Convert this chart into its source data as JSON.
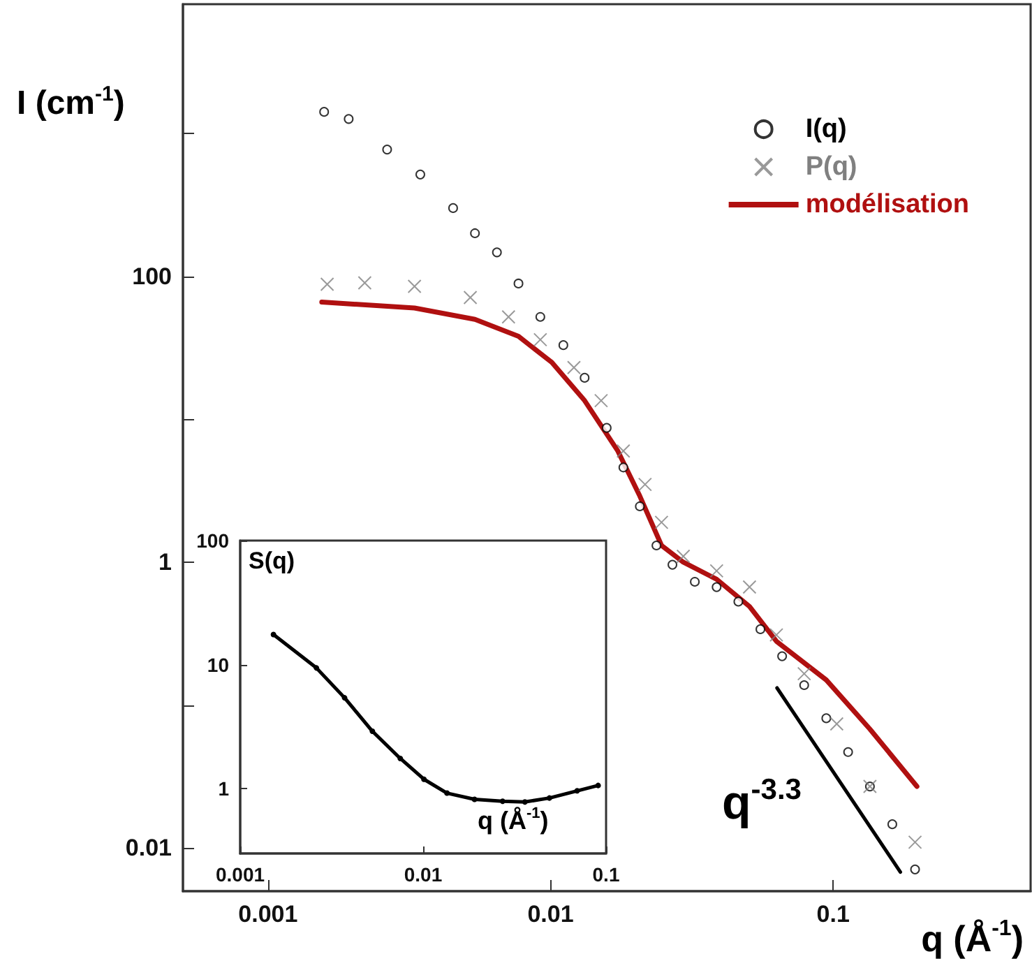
{
  "chart_data": [
    {
      "type": "scatter",
      "xlabel": "q (Å$^{-1}$)",
      "ylabel": "I (cm$^{-1}$)",
      "log": "xy",
      "xlim": [
        0.0005,
        0.5
      ],
      "ylim": [
        0.005,
        8000
      ],
      "xticks": [
        0.001,
        0.01,
        0.1
      ],
      "yticks": [
        0.01,
        {
          "value": 0.1,
          "label": null
        },
        1,
        {
          "value": 10,
          "label": null
        },
        100,
        {
          "value": 1000,
          "label": null
        }
      ],
      "legend": "top right",
      "grid": false,
      "series": [
        {
          "name": "I(q)",
          "marker": "circle",
          "color": "#000000",
          "x": [
            0.00158,
            0.00193,
            0.00264,
            0.00346,
            0.00452,
            0.0054,
            0.00646,
            0.0077,
            0.0092,
            0.0111,
            0.0132,
            0.0158,
            0.0181,
            0.0207,
            0.0237,
            0.027,
            0.0324,
            0.0387,
            0.0462,
            0.0553,
            0.066,
            0.079,
            0.0946,
            0.113,
            0.135,
            0.162,
            0.195
          ],
          "values": [
            1413,
            1260,
            770,
            515,
            300,
            200,
            147,
            89,
            52,
            33,
            19.5,
            8.7,
            4.6,
            2.46,
            1.31,
            0.96,
            0.73,
            0.67,
            0.53,
            0.34,
            0.22,
            0.138,
            0.081,
            0.047,
            0.027,
            0.0147,
            0.0071
          ]
        },
        {
          "name": "P(q)",
          "marker": "cross",
          "color": "#808080",
          "x": [
            0.00162,
            0.0022,
            0.0033,
            0.0052,
            0.0071,
            0.0092,
            0.0121,
            0.0151,
            0.0181,
            0.0216,
            0.0247,
            0.0295,
            0.0387,
            0.0506,
            0.063,
            0.079,
            0.103,
            0.135,
            0.195
          ],
          "values": [
            88,
            90,
            85,
            71,
            52,
            36,
            23,
            13.5,
            6,
            3.5,
            1.9,
            1.1,
            0.87,
            0.67,
            0.31,
            0.166,
            0.074,
            0.027,
            0.011
          ]
        },
        {
          "name": "modélisation",
          "type": "line",
          "color": "#b01010",
          "x": [
            0.00155,
            0.0033,
            0.0054,
            0.0077,
            0.0101,
            0.0132,
            0.0173,
            0.0207,
            0.0247,
            0.0295,
            0.0387,
            0.0506,
            0.063,
            0.0946,
            0.135,
            0.198
          ],
          "values": [
            66,
            60,
            50,
            38,
            25,
            13.5,
            6,
            2.9,
            1.31,
            1.0,
            0.76,
            0.49,
            0.28,
            0.15,
            0.068,
            0.027
          ]
        },
        {
          "type": "line",
          "color": "#000000",
          "x": [
            0.0633,
            0.173
          ],
          "values": [
            0.132,
            0.0068
          ]
        }
      ],
      "annotations": [
        "q$^{-3.3}$"
      ]
    },
    {
      "type": "line",
      "xlabel": "q (Å$^{-1}$)",
      "ylabel": "S(q)",
      "log": "xy",
      "xlim": [
        0.001,
        0.1
      ],
      "ylim": [
        0.3,
        100
      ],
      "xticks": [
        0.001,
        0.01,
        0.1
      ],
      "yticks": [
        1,
        10,
        100
      ],
      "grid": false,
      "marker": "circle",
      "series": [
        {
          "color": "#000000",
          "x": [
            0.00152,
            0.00261,
            0.00372,
            0.00528,
            0.0075,
            0.0101,
            0.0135,
            0.0191,
            0.0272,
            0.036,
            0.049,
            0.0695,
            0.0905
          ],
          "values": [
            17.5,
            9.4,
            5.4,
            2.9,
            1.75,
            1.19,
            0.92,
            0.82,
            0.79,
            0.78,
            0.84,
            0.96,
            1.06
          ]
        }
      ]
    }
  ]
}
